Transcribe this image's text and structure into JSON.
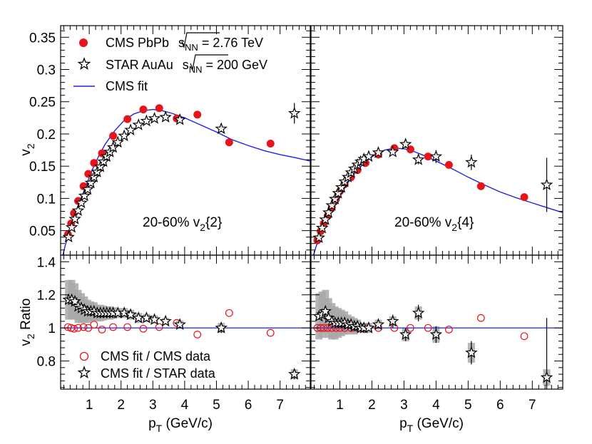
{
  "colors": {
    "cms": "#e8141c",
    "star": "#000000",
    "fit": "#1f1fe6",
    "band": "#a8a8a8",
    "unity": "#1f1fe6"
  },
  "legend_top": {
    "cms_label": "CMS PbPb",
    "cms_energy_var": "s",
    "cms_energy_sub": "NN",
    "cms_energy_val": " = 2.76 TeV",
    "star_label": "STAR AuAu",
    "star_energy_var": "s",
    "star_energy_sub": "NN",
    "star_energy_val": " = 200 GeV",
    "fit_label": "CMS fit"
  },
  "legend_bottom": {
    "ratio_cms": "CMS fit / CMS data",
    "ratio_star": "CMS fit / STAR data"
  },
  "axes": {
    "xlabel_main": "p",
    "xlabel_sub": "T",
    "xlabel_unit": " (GeV/c)",
    "ylabel_top_main": "v",
    "ylabel_top_sub": "2",
    "ylabel_bottom_main": "v",
    "ylabel_bottom_sub": "2",
    "ylabel_bottom_suffix": " Ratio",
    "x_ticks": [
      "1",
      "2",
      "3",
      "4",
      "5",
      "6",
      "7"
    ],
    "y_top_ticks": [
      "0.05",
      "0.1",
      "0.15",
      "0.2",
      "0.25",
      "0.3",
      "0.35"
    ],
    "y_bottom_ticks": [
      "0.8",
      "1",
      "1.2",
      "1.4"
    ]
  },
  "chart_data": [
    {
      "type": "scatter",
      "panel": "top-left",
      "title": "20-60%  v2{2}",
      "annotation_main": "20-60%  v",
      "annotation_sub": "2",
      "annotation_tail": "{2}",
      "xlabel": "pT (GeV/c)",
      "ylabel": "v2",
      "xlim": [
        0.1,
        7.95
      ],
      "ylim": [
        0.012,
        0.368
      ],
      "series": [
        {
          "name": "CMS PbPb sqrt(sNN) = 2.76 TeV",
          "marker": "filled-circle",
          "x": [
            0.33,
            0.43,
            0.52,
            0.65,
            0.82,
            0.97,
            1.15,
            1.4,
            1.75,
            2.2,
            2.7,
            3.2,
            3.75,
            4.4,
            5.4,
            6.7
          ],
          "y": [
            0.044,
            0.061,
            0.077,
            0.096,
            0.119,
            0.138,
            0.155,
            0.17,
            0.197,
            0.223,
            0.238,
            0.24,
            0.224,
            0.23,
            0.187,
            0.185
          ]
        },
        {
          "name": "STAR AuAu sqrt(sNN) = 200 GeV",
          "marker": "open-star",
          "x": [
            0.35,
            0.45,
            0.55,
            0.65,
            0.75,
            0.85,
            0.95,
            1.05,
            1.15,
            1.25,
            1.35,
            1.45,
            1.55,
            1.65,
            1.75,
            1.9,
            2.1,
            2.3,
            2.55,
            2.8,
            3.05,
            3.4,
            3.85,
            5.15,
            7.45
          ],
          "y": [
            0.04,
            0.055,
            0.068,
            0.081,
            0.093,
            0.104,
            0.114,
            0.124,
            0.133,
            0.141,
            0.149,
            0.157,
            0.165,
            0.172,
            0.179,
            0.187,
            0.197,
            0.206,
            0.214,
            0.22,
            0.224,
            0.226,
            0.222,
            0.208,
            0.232
          ],
          "yerr": [
            0,
            0,
            0,
            0,
            0,
            0,
            0,
            0,
            0,
            0,
            0,
            0,
            0,
            0,
            0,
            0,
            0,
            0,
            0,
            0,
            0,
            0,
            0,
            0.005,
            0.016
          ]
        },
        {
          "name": "CMS fit",
          "marker": "line",
          "x": [
            0.17,
            0.25,
            0.35,
            0.5,
            0.7,
            0.9,
            1.1,
            1.3,
            1.5,
            1.8,
            2.1,
            2.4,
            2.7,
            3.0,
            3.3,
            3.6,
            4.0,
            4.5,
            5.0,
            5.5,
            6.0,
            6.5,
            7.0,
            7.5,
            7.95
          ],
          "y": [
            0.012,
            0.028,
            0.044,
            0.066,
            0.094,
            0.12,
            0.145,
            0.166,
            0.184,
            0.205,
            0.221,
            0.231,
            0.236,
            0.238,
            0.236,
            0.232,
            0.225,
            0.214,
            0.203,
            0.191,
            0.182,
            0.174,
            0.168,
            0.163,
            0.158
          ]
        }
      ]
    },
    {
      "type": "scatter",
      "panel": "top-right",
      "title": "20-60%  v2{4}",
      "annotation_main": "20-60%  v",
      "annotation_sub": "2",
      "annotation_tail": "{4}",
      "xlabel": "pT (GeV/c)",
      "ylabel": "v2",
      "xlim": [
        0.1,
        7.95
      ],
      "ylim": [
        0.012,
        0.368
      ],
      "series": [
        {
          "name": "CMS PbPb sqrt(sNN) = 2.76 TeV",
          "marker": "filled-circle",
          "x": [
            0.3,
            0.4,
            0.5,
            0.62,
            0.75,
            0.88,
            1.0,
            1.15,
            1.35,
            1.55,
            1.8,
            2.2,
            2.7,
            3.2,
            3.75,
            4.4,
            5.4,
            6.75
          ],
          "y": [
            0.035,
            0.049,
            0.061,
            0.073,
            0.086,
            0.099,
            0.111,
            0.122,
            0.133,
            0.144,
            0.155,
            0.168,
            0.178,
            0.176,
            0.165,
            0.152,
            0.119,
            0.102
          ]
        },
        {
          "name": "STAR AuAu sqrt(sNN) = 200 GeV",
          "marker": "open-star",
          "x": [
            0.35,
            0.45,
            0.55,
            0.65,
            0.75,
            0.85,
            0.95,
            1.05,
            1.15,
            1.25,
            1.35,
            1.45,
            1.55,
            1.65,
            1.75,
            1.9,
            2.2,
            2.65,
            3.05,
            3.45,
            4.0,
            5.1,
            7.45
          ],
          "y": [
            0.039,
            0.054,
            0.067,
            0.078,
            0.089,
            0.099,
            0.108,
            0.117,
            0.126,
            0.133,
            0.14,
            0.146,
            0.152,
            0.157,
            0.161,
            0.165,
            0.171,
            0.172,
            0.184,
            0.16,
            0.165,
            0.156,
            0.121
          ],
          "yerr": [
            0,
            0,
            0,
            0,
            0,
            0,
            0,
            0,
            0,
            0,
            0,
            0,
            0,
            0,
            0,
            0,
            0,
            0.004,
            0.006,
            0.007,
            0.01,
            0.012,
            0.042
          ]
        },
        {
          "name": "CMS fit",
          "marker": "line",
          "x": [
            0.18,
            0.25,
            0.35,
            0.5,
            0.7,
            0.9,
            1.1,
            1.3,
            1.5,
            1.8,
            2.1,
            2.4,
            2.7,
            3.0,
            3.3,
            3.6,
            4.0,
            4.5,
            5.0,
            5.5,
            6.0,
            6.5,
            7.0,
            7.5,
            7.95
          ],
          "y": [
            0.012,
            0.024,
            0.037,
            0.054,
            0.075,
            0.094,
            0.112,
            0.128,
            0.141,
            0.157,
            0.168,
            0.175,
            0.178,
            0.177,
            0.173,
            0.167,
            0.158,
            0.146,
            0.133,
            0.121,
            0.11,
            0.101,
            0.093,
            0.085,
            0.078
          ]
        }
      ]
    },
    {
      "type": "scatter",
      "panel": "bottom-left",
      "xlabel": "pT (GeV/c)",
      "ylabel": "v2 Ratio",
      "xlim": [
        0.1,
        7.95
      ],
      "ylim": [
        0.63,
        1.44
      ],
      "reference_line": 1.0,
      "series": [
        {
          "name": "CMS fit / CMS data",
          "marker": "open-circle",
          "x": [
            0.33,
            0.43,
            0.52,
            0.65,
            0.82,
            0.97,
            1.15,
            1.4,
            1.75,
            2.2,
            2.7,
            3.2,
            3.75,
            4.4,
            5.4,
            6.7
          ],
          "y": [
            1.005,
            1.0,
            0.995,
            1.0,
            1.005,
            1.0,
            1.02,
            0.99,
            1.005,
            1.005,
            0.995,
            1.005,
            1.03,
            0.96,
            1.09,
            0.97
          ]
        },
        {
          "name": "CMS fit / STAR data",
          "marker": "open-star",
          "x": [
            0.35,
            0.45,
            0.55,
            0.65,
            0.75,
            0.85,
            0.95,
            1.05,
            1.15,
            1.25,
            1.35,
            1.45,
            1.55,
            1.65,
            1.75,
            1.9,
            2.1,
            2.3,
            2.55,
            2.8,
            3.05,
            3.4,
            3.85,
            5.15,
            7.45
          ],
          "y": [
            1.17,
            1.17,
            1.16,
            1.13,
            1.12,
            1.11,
            1.1,
            1.1,
            1.1,
            1.09,
            1.09,
            1.09,
            1.09,
            1.09,
            1.09,
            1.09,
            1.09,
            1.08,
            1.06,
            1.06,
            1.05,
            1.04,
            1.02,
            1.0,
            0.72
          ],
          "band": [
            0.12,
            0.12,
            0.11,
            0.1,
            0.09,
            0.08,
            0.07,
            0.06,
            0.055,
            0.05,
            0.05,
            0.045,
            0.04,
            0.04,
            0.035,
            0.03,
            0.03,
            0.03,
            0.03,
            0.025,
            0.025,
            0.02,
            0.025,
            0.03,
            0.03
          ],
          "yerr": [
            0,
            0,
            0,
            0,
            0,
            0,
            0,
            0,
            0,
            0,
            0,
            0,
            0,
            0,
            0,
            0,
            0,
            0,
            0,
            0,
            0,
            0,
            0,
            0.03,
            0.03
          ]
        }
      ]
    },
    {
      "type": "scatter",
      "panel": "bottom-right",
      "xlabel": "pT (GeV/c)",
      "ylabel": "v2 Ratio",
      "xlim": [
        0.1,
        7.95
      ],
      "ylim": [
        0.63,
        1.44
      ],
      "reference_line": 1.0,
      "series": [
        {
          "name": "CMS fit / CMS data",
          "marker": "open-circle",
          "x": [
            0.3,
            0.4,
            0.5,
            0.62,
            0.75,
            0.88,
            1.0,
            1.15,
            1.35,
            1.55,
            1.8,
            2.2,
            2.7,
            3.2,
            3.75,
            4.4,
            5.4,
            6.75
          ],
          "y": [
            1.0,
            1.0,
            1.0,
            1.0,
            1.0,
            1.0,
            1.0,
            1.0,
            1.0,
            1.0,
            1.0,
            1.0,
            1.0,
            1.0,
            1.0,
            0.99,
            1.06,
            0.95
          ]
        },
        {
          "name": "CMS fit / STAR data",
          "marker": "open-star",
          "x": [
            0.35,
            0.45,
            0.55,
            0.65,
            0.75,
            0.85,
            0.95,
            1.05,
            1.15,
            1.25,
            1.35,
            1.45,
            1.55,
            1.65,
            1.75,
            1.9,
            2.2,
            2.65,
            3.05,
            3.45,
            4.0,
            5.1,
            7.45
          ],
          "y": [
            1.07,
            1.08,
            1.1,
            1.06,
            1.04,
            1.03,
            1.03,
            1.03,
            1.03,
            1.02,
            1.02,
            1.01,
            1.01,
            1.0,
            1.0,
            1.0,
            1.02,
            1.04,
            0.96,
            1.09,
            0.96,
            0.85,
            0.7
          ],
          "band": [
            0.14,
            0.14,
            0.13,
            0.12,
            0.11,
            0.1,
            0.09,
            0.08,
            0.07,
            0.06,
            0.05,
            0.05,
            0.04,
            0.03,
            0.03,
            0.03,
            0.03,
            0.03,
            0.04,
            0.04,
            0.05,
            0.06,
            0.05
          ],
          "yerr": [
            0,
            0,
            0,
            0,
            0,
            0,
            0,
            0,
            0,
            0,
            0,
            0,
            0,
            0,
            0,
            0,
            0.02,
            0.04,
            0.04,
            0.05,
            0.05,
            0.07,
            0.36
          ]
        }
      ]
    }
  ]
}
